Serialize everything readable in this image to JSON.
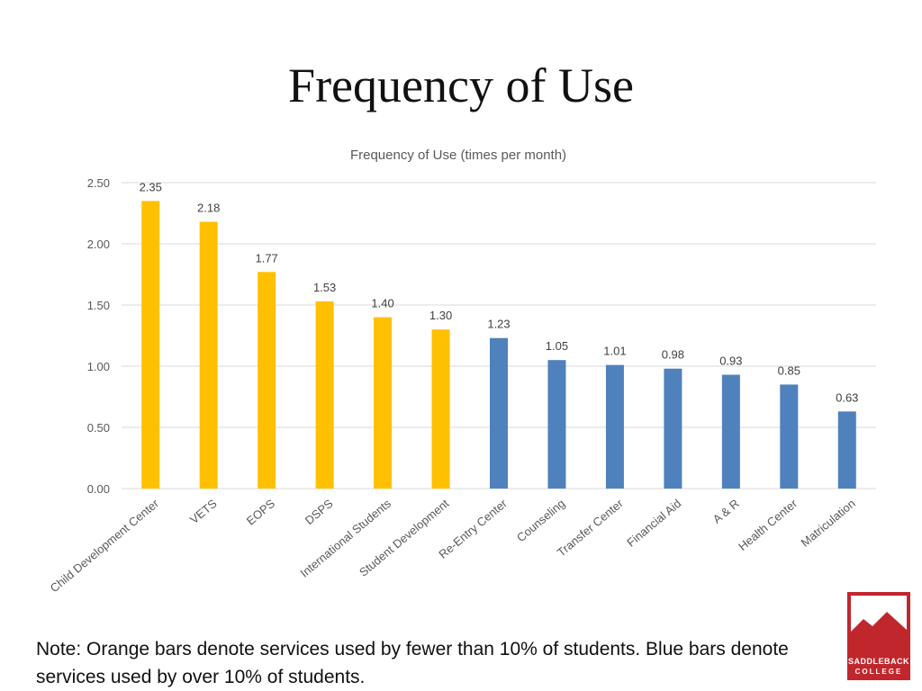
{
  "slide": {
    "title": "Frequency of Use",
    "note": "Note: Orange bars denote services used by fewer than 10% of students. Blue bars denote services used by over 10% of students."
  },
  "logo": {
    "line1": "SADDLEBACK",
    "line2": "COLLEGE",
    "color": "#c0272d"
  },
  "chart_data": {
    "type": "bar",
    "title": "Frequency of Use (times per month)",
    "xlabel": "",
    "ylabel": "",
    "ylim": [
      0,
      2.5
    ],
    "yticks": [
      "0.00",
      "0.50",
      "1.00",
      "1.50",
      "2.00",
      "2.50"
    ],
    "grid": true,
    "categories": [
      "Child Development Center",
      "VETS",
      "EOPS",
      "DSPS",
      "International Students",
      "Student Development",
      "Re-Entry Center",
      "Counseling",
      "Transfer Center",
      "Financial Aid",
      "A & R",
      "Health Center",
      "Matriculation"
    ],
    "values": [
      2.35,
      2.18,
      1.77,
      1.53,
      1.4,
      1.3,
      1.23,
      1.05,
      1.01,
      0.98,
      0.93,
      0.85,
      0.63
    ],
    "value_labels": [
      "2.35",
      "2.18",
      "1.77",
      "1.53",
      "1.40",
      "1.30",
      "1.23",
      "1.05",
      "1.01",
      "0.98",
      "0.93",
      "0.85",
      "0.63"
    ],
    "bar_colors": [
      "#ffc000",
      "#ffc000",
      "#ffc000",
      "#ffc000",
      "#ffc000",
      "#ffc000",
      "#4f81bd",
      "#4f81bd",
      "#4f81bd",
      "#4f81bd",
      "#4f81bd",
      "#4f81bd",
      "#4f81bd"
    ]
  }
}
